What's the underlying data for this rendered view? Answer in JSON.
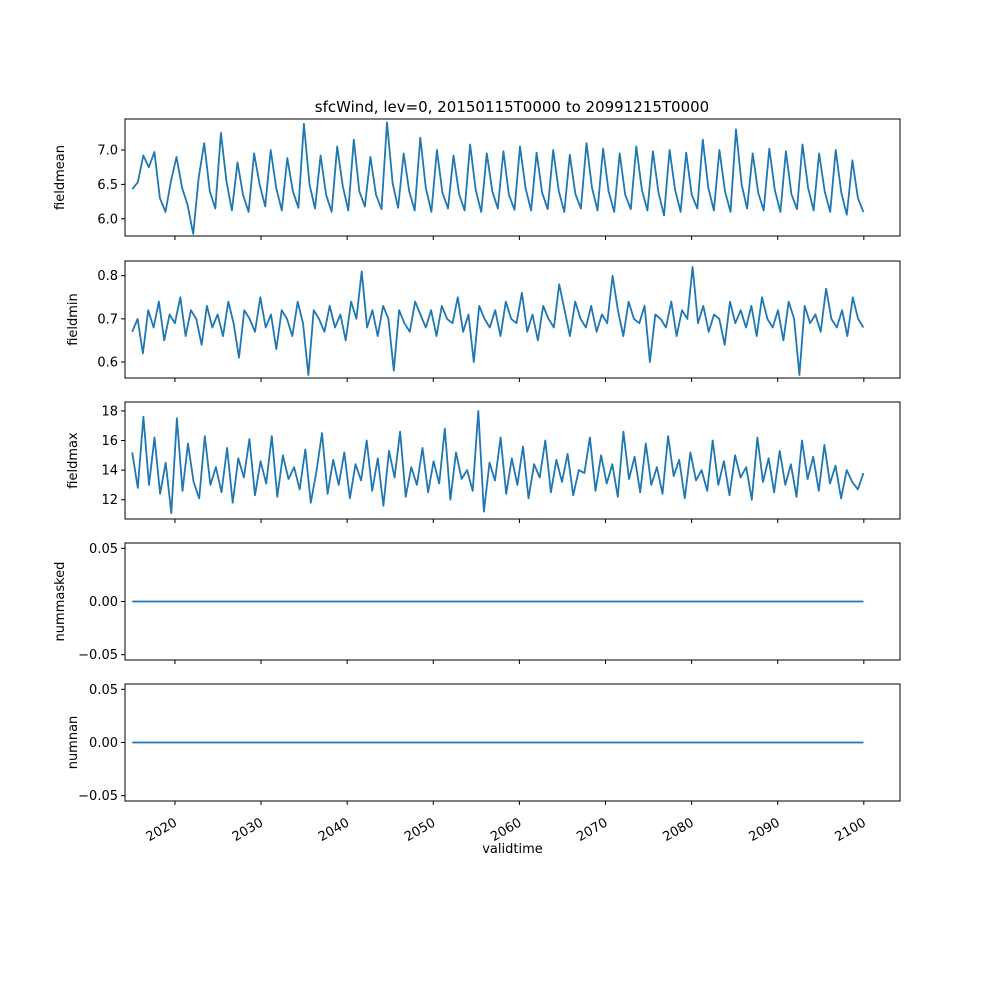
{
  "figure": {
    "title": "sfcWind, lev=0, 20150115T0000 to 20991215T0000",
    "line_color": "#1f77b4"
  },
  "chart_data": [
    {
      "type": "line",
      "title": "sfcWind, lev=0, 20150115T0000 to 20991215T0000",
      "xlabel": "",
      "ylabel": "fieldmean",
      "x_start": "2015-01-15",
      "x_end": "2099-12-15",
      "x_frequency": "monthly",
      "xlim": [
        2014.2,
        2104.2
      ],
      "x_ticks": [
        "2020",
        "2030",
        "2040",
        "2050",
        "2060",
        "2070",
        "2080",
        "2090",
        "2100"
      ],
      "x_tick_labels_shown": false,
      "ylim": [
        5.75,
        7.45
      ],
      "y_ticks": [
        "6.0",
        "6.5",
        "7.0"
      ],
      "series": [
        {
          "values": [
            6.43,
            6.53,
            6.92,
            6.75,
            6.97,
            6.3,
            6.1,
            6.55,
            6.9,
            6.45,
            6.2,
            5.78,
            6.6,
            7.1,
            6.4,
            6.15,
            7.25,
            6.55,
            6.12,
            6.82,
            6.35,
            6.1,
            6.95,
            6.5,
            6.18,
            7.0,
            6.45,
            6.12,
            6.88,
            6.4,
            6.16,
            7.38,
            6.5,
            6.15,
            6.92,
            6.35,
            6.1,
            7.05,
            6.48,
            6.12,
            7.15,
            6.4,
            6.18,
            6.9,
            6.35,
            6.14,
            7.4,
            6.52,
            6.16,
            6.95,
            6.4,
            6.12,
            7.18,
            6.45,
            6.1,
            7.0,
            6.38,
            6.15,
            6.92,
            6.36,
            6.12,
            7.08,
            6.42,
            6.1,
            6.95,
            6.4,
            6.15,
            6.98,
            6.35,
            6.13,
            7.05,
            6.45,
            6.12,
            6.96,
            6.38,
            6.14,
            7.0,
            6.4,
            6.1,
            6.93,
            6.36,
            6.15,
            7.1,
            6.45,
            6.12,
            7.02,
            6.4,
            6.1,
            6.95,
            6.35,
            6.14,
            7.05,
            6.42,
            6.12,
            6.98,
            6.38,
            6.05,
            7.0,
            6.42,
            6.1,
            6.96,
            6.35,
            6.15,
            7.15,
            6.45,
            6.12,
            7.0,
            6.4,
            6.1,
            7.3,
            6.5,
            6.15,
            6.95,
            6.38,
            6.12,
            7.02,
            6.42,
            6.1,
            6.98,
            6.36,
            6.14,
            7.08,
            6.45,
            6.12,
            6.95,
            6.4,
            6.1,
            7.0,
            6.38,
            6.06,
            6.85,
            6.3,
            6.1
          ]
        }
      ]
    },
    {
      "type": "line",
      "xlabel": "",
      "ylabel": "fieldmin",
      "x_start": "2015-01-15",
      "x_end": "2099-12-15",
      "x_frequency": "monthly",
      "xlim": [
        2014.2,
        2104.2
      ],
      "x_ticks": [
        "2020",
        "2030",
        "2040",
        "2050",
        "2060",
        "2070",
        "2080",
        "2090",
        "2100"
      ],
      "x_tick_labels_shown": false,
      "ylim": [
        0.563,
        0.834
      ],
      "y_ticks": [
        "0.6",
        "0.7",
        "0.8"
      ],
      "series": [
        {
          "values": [
            0.67,
            0.7,
            0.62,
            0.72,
            0.68,
            0.74,
            0.65,
            0.71,
            0.69,
            0.75,
            0.66,
            0.72,
            0.7,
            0.64,
            0.73,
            0.68,
            0.71,
            0.66,
            0.74,
            0.69,
            0.61,
            0.72,
            0.7,
            0.67,
            0.75,
            0.68,
            0.71,
            0.63,
            0.72,
            0.7,
            0.66,
            0.74,
            0.69,
            0.57,
            0.72,
            0.7,
            0.67,
            0.73,
            0.68,
            0.71,
            0.65,
            0.74,
            0.7,
            0.81,
            0.68,
            0.72,
            0.66,
            0.73,
            0.7,
            0.58,
            0.72,
            0.69,
            0.67,
            0.74,
            0.71,
            0.68,
            0.72,
            0.66,
            0.73,
            0.7,
            0.69,
            0.75,
            0.67,
            0.71,
            0.6,
            0.73,
            0.7,
            0.68,
            0.72,
            0.66,
            0.74,
            0.7,
            0.69,
            0.76,
            0.67,
            0.71,
            0.65,
            0.73,
            0.7,
            0.68,
            0.78,
            0.72,
            0.66,
            0.74,
            0.7,
            0.68,
            0.73,
            0.67,
            0.71,
            0.69,
            0.8,
            0.72,
            0.66,
            0.74,
            0.7,
            0.69,
            0.73,
            0.6,
            0.71,
            0.7,
            0.68,
            0.74,
            0.66,
            0.72,
            0.7,
            0.82,
            0.69,
            0.73,
            0.67,
            0.71,
            0.7,
            0.64,
            0.74,
            0.69,
            0.72,
            0.68,
            0.73,
            0.66,
            0.75,
            0.7,
            0.68,
            0.72,
            0.65,
            0.74,
            0.7,
            0.57,
            0.73,
            0.69,
            0.71,
            0.67,
            0.77,
            0.7,
            0.68,
            0.72,
            0.66,
            0.75,
            0.7,
            0.68
          ]
        }
      ]
    },
    {
      "type": "line",
      "xlabel": "",
      "ylabel": "fieldmax",
      "x_start": "2015-01-15",
      "x_end": "2099-12-15",
      "x_frequency": "monthly",
      "xlim": [
        2014.2,
        2104.2
      ],
      "x_ticks": [
        "2020",
        "2030",
        "2040",
        "2050",
        "2060",
        "2070",
        "2080",
        "2090",
        "2100"
      ],
      "x_tick_labels_shown": false,
      "ylim": [
        10.7,
        18.6
      ],
      "y_ticks": [
        "12",
        "14",
        "16",
        "18"
      ],
      "series": [
        {
          "values": [
            15.2,
            12.8,
            17.6,
            13.0,
            16.2,
            12.4,
            14.5,
            11.1,
            17.5,
            12.6,
            15.8,
            13.2,
            12.1,
            16.3,
            13.0,
            14.2,
            12.5,
            15.5,
            11.8,
            14.8,
            13.5,
            16.1,
            12.3,
            14.6,
            13.1,
            16.3,
            12.2,
            15.0,
            13.4,
            14.2,
            12.7,
            15.4,
            11.8,
            13.9,
            16.5,
            12.4,
            14.7,
            13.0,
            15.2,
            12.1,
            14.4,
            13.3,
            16.0,
            12.6,
            14.8,
            11.6,
            15.3,
            13.5,
            16.6,
            12.2,
            14.2,
            13.0,
            15.5,
            12.5,
            14.6,
            13.1,
            16.8,
            12.0,
            15.2,
            13.4,
            14.0,
            12.6,
            18.0,
            11.2,
            14.5,
            13.3,
            16.2,
            12.4,
            14.8,
            13.0,
            15.6,
            12.1,
            14.4,
            13.5,
            16.0,
            12.5,
            14.7,
            13.2,
            15.1,
            12.3,
            14.0,
            13.8,
            16.2,
            12.6,
            15.0,
            13.1,
            14.4,
            12.2,
            16.6,
            13.4,
            14.9,
            12.5,
            15.8,
            13.0,
            14.2,
            12.4,
            16.3,
            13.6,
            14.7,
            12.1,
            15.2,
            13.3,
            14.0,
            12.6,
            16.0,
            13.0,
            14.6,
            12.3,
            15.0,
            13.5,
            14.2,
            12.0,
            16.2,
            13.2,
            14.8,
            12.5,
            15.3,
            13.0,
            14.4,
            12.2,
            16.0,
            13.4,
            14.9,
            12.6,
            15.7,
            13.1,
            14.3,
            12.1,
            14.0,
            13.2,
            12.7,
            13.8
          ]
        }
      ]
    },
    {
      "type": "line",
      "xlabel": "",
      "ylabel": "nummasked",
      "x_start": "2015-01-15",
      "x_end": "2099-12-15",
      "x_frequency": "monthly",
      "xlim": [
        2014.2,
        2104.2
      ],
      "x_ticks": [
        "2020",
        "2030",
        "2040",
        "2050",
        "2060",
        "2070",
        "2080",
        "2090",
        "2100"
      ],
      "x_tick_labels_shown": false,
      "ylim": [
        -0.055,
        0.055
      ],
      "y_ticks": [
        "−0.05",
        "0.00",
        "0.05"
      ],
      "series": [
        {
          "values": [
            0,
            0
          ]
        }
      ],
      "x": [
        2015.04,
        2099.95
      ]
    },
    {
      "type": "line",
      "xlabel": "validtime",
      "ylabel": "numnan",
      "x_start": "2015-01-15",
      "x_end": "2099-12-15",
      "x_frequency": "monthly",
      "xlim": [
        2014.2,
        2104.2
      ],
      "x_ticks": [
        "2020",
        "2030",
        "2040",
        "2050",
        "2060",
        "2070",
        "2080",
        "2090",
        "2100"
      ],
      "x_tick_labels_shown": true,
      "ylim": [
        -0.055,
        0.055
      ],
      "y_ticks": [
        "−0.05",
        "0.00",
        "0.05"
      ],
      "series": [
        {
          "values": [
            0,
            0
          ]
        }
      ],
      "x": [
        2015.04,
        2099.95
      ]
    }
  ]
}
